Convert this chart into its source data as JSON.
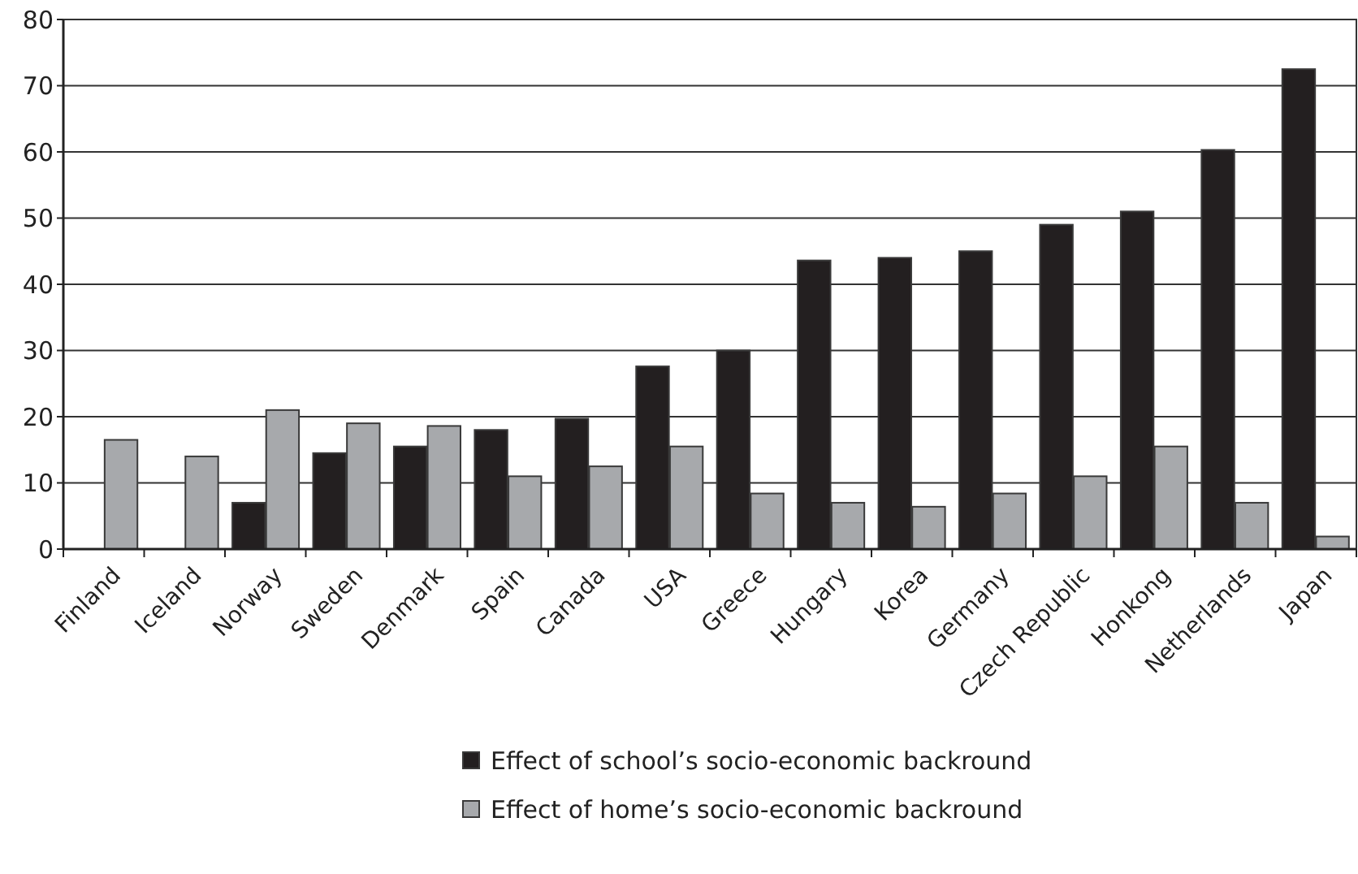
{
  "chart_data": {
    "type": "bar",
    "categories": [
      "Finland",
      "Iceland",
      "Norway",
      "Sweden",
      "Denmark",
      "Spain",
      "Canada",
      "USA",
      "Greece",
      "Hungary",
      "Korea",
      "Germany",
      "Czech Republic",
      "Honkong",
      "Netherlands",
      "Japan"
    ],
    "series": [
      {
        "name": "Effect of school’s socio-economic backround",
        "color": "#231f20",
        "values": [
          null,
          null,
          7,
          14.5,
          15.5,
          18,
          19.7,
          27.6,
          30,
          43.6,
          44,
          45,
          49,
          51,
          60.3,
          72.5
        ]
      },
      {
        "name": "Effect of home’s socio-economic backround",
        "color": "#a7a9ac",
        "values": [
          16.5,
          14,
          21,
          19,
          18.6,
          11,
          12.5,
          15.5,
          8.4,
          7,
          6.4,
          8.4,
          11,
          15.5,
          7,
          1.9
        ]
      }
    ],
    "ylim": [
      0,
      80
    ],
    "yticks": [
      0,
      10,
      20,
      30,
      40,
      50,
      60,
      70,
      80
    ],
    "grid": "y",
    "legend": "bottom"
  }
}
